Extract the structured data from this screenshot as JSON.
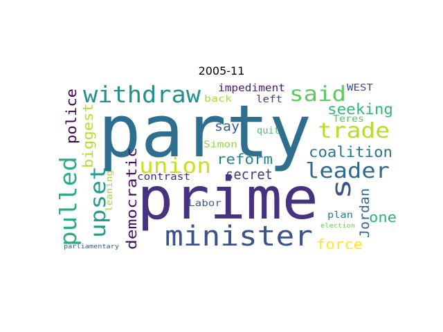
{
  "title": "2005-11",
  "words": [
    {
      "text": "party",
      "color": "#2e6e8e"
    },
    {
      "text": "prime",
      "color": "#46327e"
    },
    {
      "text": "minister",
      "color": "#3b528b"
    },
    {
      "text": "withdraw",
      "color": "#21918c"
    },
    {
      "text": "said",
      "color": "#5ec962"
    },
    {
      "text": "trade",
      "color": "#b5de2b"
    },
    {
      "text": "leader",
      "color": "#31688e"
    },
    {
      "text": "union",
      "color": "#c8e020"
    },
    {
      "text": "pulled",
      "color": "#29af7f"
    },
    {
      "text": "upset",
      "color": "#1f9e89"
    },
    {
      "text": "s",
      "color": "#3b528b"
    },
    {
      "text": "seeking",
      "color": "#35b779"
    },
    {
      "text": "coalition",
      "color": "#2c728e"
    },
    {
      "text": "reform",
      "color": "#26828e"
    },
    {
      "text": "secret",
      "color": "#433e85"
    },
    {
      "text": "say",
      "color": "#365c8d"
    },
    {
      "text": "police",
      "color": "#440154"
    },
    {
      "text": "biggest",
      "color": "#b8de29"
    },
    {
      "text": "democratic",
      "color": "#471063"
    },
    {
      "text": "Jordan",
      "color": "#31688e"
    },
    {
      "text": "one",
      "color": "#2db27d"
    },
    {
      "text": "force",
      "color": "#fde725"
    },
    {
      "text": "impediment",
      "color": "#482173"
    },
    {
      "text": "WEST",
      "color": "#3e4a89"
    },
    {
      "text": "back",
      "color": "#addc30"
    },
    {
      "text": "left",
      "color": "#414487"
    },
    {
      "text": "Teres",
      "color": "#52c569"
    },
    {
      "text": "quit",
      "color": "#4ac16d"
    },
    {
      "text": "Simon",
      "color": "#90d743"
    },
    {
      "text": "contrast",
      "color": "#482878"
    },
    {
      "text": "leaning",
      "color": "#a0da39"
    },
    {
      "text": "Labor",
      "color": "#355f8d"
    },
    {
      "text": "plan",
      "color": "#2a788e"
    },
    {
      "text": "election",
      "color": "#6ccd5a"
    },
    {
      "text": "parliamentary",
      "color": "#39568c"
    }
  ]
}
